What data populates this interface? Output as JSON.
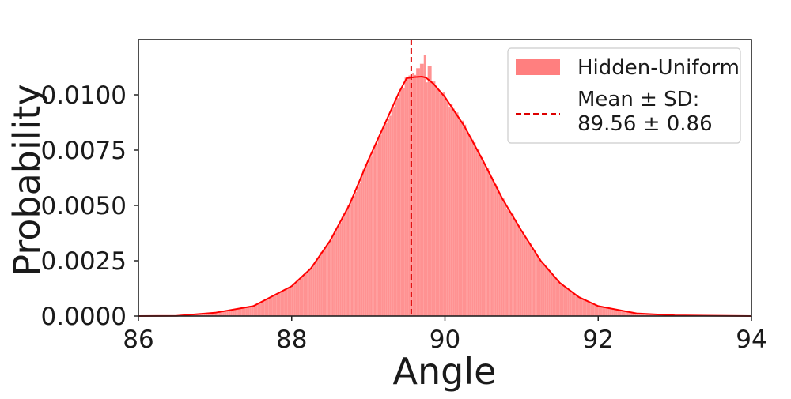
{
  "chart_data": {
    "type": "histogram",
    "title": "",
    "xlabel": "Angle",
    "ylabel": "Probability",
    "xlim": [
      86,
      94
    ],
    "ylim": [
      0,
      0.0125
    ],
    "xticks": [
      86,
      88,
      90,
      92,
      94
    ],
    "xtick_labels": [
      "86",
      "88",
      "90",
      "92",
      "94"
    ],
    "yticks": [
      0,
      0.0025,
      0.005,
      0.0075,
      0.01
    ],
    "ytick_labels": [
      "0.0000",
      "0.0025",
      "0.0050",
      "0.0075",
      "0.0100"
    ],
    "grid": false,
    "legend_position": "top-right",
    "series": [
      {
        "name": "Hidden-Uniform",
        "kind": "histogram",
        "color": "#ff7f7f",
        "distribution": {
          "mean": 89.56,
          "sd": 0.86,
          "bin_width": 0.025
        },
        "spikes": [
          {
            "x": 89.74,
            "y": 0.0118
          },
          {
            "x": 89.7,
            "y": 0.0114
          },
          {
            "x": 89.8,
            "y": 0.0113
          },
          {
            "x": 89.65,
            "y": 0.0112
          },
          {
            "x": 89.85,
            "y": 0.0106
          }
        ]
      },
      {
        "name": "",
        "kind": "kde-line",
        "color": "#ff0000",
        "points": [
          [
            86.0,
            0.0
          ],
          [
            86.5,
            1e-05
          ],
          [
            87.0,
            0.00015
          ],
          [
            87.5,
            0.00045
          ],
          [
            88.0,
            0.00135
          ],
          [
            88.25,
            0.00215
          ],
          [
            88.5,
            0.0034
          ],
          [
            88.75,
            0.005
          ],
          [
            89.0,
            0.00705
          ],
          [
            89.25,
            0.00895
          ],
          [
            89.4,
            0.0101
          ],
          [
            89.5,
            0.01075
          ],
          [
            89.6,
            0.0108
          ],
          [
            89.7,
            0.01082
          ],
          [
            89.75,
            0.01078
          ],
          [
            89.85,
            0.0105
          ],
          [
            90.0,
            0.0099
          ],
          [
            90.25,
            0.0086
          ],
          [
            90.5,
            0.007
          ],
          [
            90.75,
            0.0053
          ],
          [
            91.0,
            0.00385
          ],
          [
            91.25,
            0.0025
          ],
          [
            91.5,
            0.0015
          ],
          [
            91.75,
            0.00085
          ],
          [
            92.0,
            0.00045
          ],
          [
            92.5,
            0.00012
          ],
          [
            93.0,
            3e-05
          ],
          [
            94.0,
            0.0
          ]
        ]
      },
      {
        "name": "Mean ± SD:\n89.56 ± 0.86",
        "kind": "vline",
        "x": 89.56,
        "color": "#dd0000",
        "dash": "dashed"
      }
    ],
    "legend": {
      "entries": [
        {
          "label_lines": [
            "Hidden-Uniform"
          ],
          "swatch": "patch",
          "color": "#ff7f7f"
        },
        {
          "label_lines": [
            "Mean ± SD:",
            "89.56 ± 0.86"
          ],
          "swatch": "dashed-line",
          "color": "#dd0000"
        }
      ]
    }
  }
}
